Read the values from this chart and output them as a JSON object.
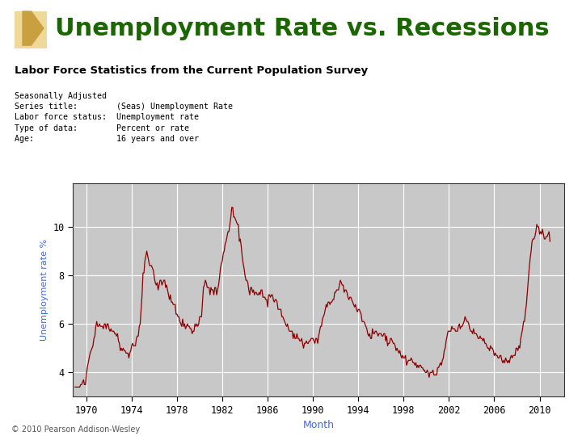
{
  "title": "Unemployment Rate vs. Recessions",
  "subtitle": "Labor Force Statistics from the Current Population Survey",
  "meta_lines": [
    "Seasonally Adjusted",
    "Series title:        (Seas) Unemployment Rate",
    "Labor force status:  Unemployment rate",
    "Type of data:        Percent or rate",
    "Age:                 16 years and over"
  ],
  "xlabel": "Month",
  "ylabel": "Unemployment rate %",
  "copyright": "© 2010 Pearson Addison-Wesley",
  "title_color": "#1A6600",
  "subtitle_color": "#000000",
  "line_color": "#8B0000",
  "bg_color": "#FFFFFF",
  "plot_bg": "#C8C8C8",
  "grid_color": "#FFFFFF",
  "ylabel_color": "#4169E1",
  "xlabel_color": "#4169E1",
  "yticks": [
    4,
    6,
    8,
    10
  ],
  "xticks": [
    1970,
    1974,
    1978,
    1982,
    1986,
    1990,
    1994,
    1998,
    2002,
    2006,
    2010
  ],
  "xlim": [
    1968.8,
    2012.2
  ],
  "ylim": [
    3.0,
    11.8
  ],
  "arrow_color": "#D4A84B",
  "unemployment_data": {
    "1969": [
      3.4,
      3.4,
      3.4,
      3.4,
      3.4,
      3.4,
      3.5,
      3.5,
      3.6,
      3.7,
      3.5,
      3.5
    ],
    "1970": [
      3.9,
      4.2,
      4.4,
      4.6,
      4.8,
      4.9,
      5.0,
      5.1,
      5.4,
      5.5,
      5.9,
      6.1
    ],
    "1971": [
      5.9,
      5.9,
      6.0,
      5.9,
      5.9,
      5.9,
      5.8,
      6.0,
      6.0,
      5.8,
      6.0,
      6.0
    ],
    "1972": [
      5.8,
      5.7,
      5.8,
      5.7,
      5.7,
      5.7,
      5.6,
      5.6,
      5.5,
      5.6,
      5.3,
      5.2
    ],
    "1973": [
      4.9,
      5.0,
      4.9,
      5.0,
      4.9,
      4.9,
      4.8,
      4.8,
      4.8,
      4.6,
      4.8,
      4.9
    ],
    "1974": [
      5.1,
      5.2,
      5.1,
      5.1,
      5.1,
      5.4,
      5.5,
      5.5,
      5.9,
      6.0,
      6.6,
      7.2
    ],
    "1975": [
      8.1,
      8.1,
      8.6,
      8.8,
      9.0,
      8.8,
      8.6,
      8.4,
      8.4,
      8.4,
      8.3,
      8.2
    ],
    "1976": [
      7.9,
      7.7,
      7.6,
      7.7,
      7.4,
      7.6,
      7.8,
      7.8,
      7.6,
      7.7,
      7.8,
      7.8
    ],
    "1977": [
      7.5,
      7.6,
      7.4,
      7.2,
      7.0,
      7.2,
      6.9,
      6.9,
      6.8,
      6.8,
      6.8,
      6.4
    ],
    "1978": [
      6.4,
      6.3,
      6.3,
      6.1,
      6.0,
      5.9,
      6.2,
      5.9,
      6.0,
      5.8,
      5.9,
      6.0
    ],
    "1979": [
      5.9,
      5.9,
      5.8,
      5.8,
      5.6,
      5.7,
      5.7,
      6.0,
      5.9,
      6.0,
      5.9,
      6.0
    ],
    "1980": [
      6.3,
      6.3,
      6.3,
      6.9,
      7.5,
      7.6,
      7.8,
      7.7,
      7.5,
      7.5,
      7.5,
      7.2
    ],
    "1981": [
      7.5,
      7.4,
      7.4,
      7.2,
      7.5,
      7.5,
      7.2,
      7.4,
      7.6,
      7.9,
      8.3,
      8.5
    ],
    "1982": [
      8.6,
      8.9,
      9.0,
      9.3,
      9.4,
      9.6,
      9.8,
      9.8,
      10.1,
      10.4,
      10.8,
      10.8
    ],
    "1983": [
      10.4,
      10.4,
      10.3,
      10.2,
      10.1,
      10.1,
      9.4,
      9.5,
      9.2,
      8.8,
      8.5,
      8.3
    ],
    "1984": [
      8.0,
      7.8,
      7.8,
      7.7,
      7.4,
      7.2,
      7.5,
      7.5,
      7.3,
      7.4,
      7.2,
      7.3
    ],
    "1985": [
      7.3,
      7.2,
      7.2,
      7.3,
      7.2,
      7.4,
      7.4,
      7.1,
      7.1,
      7.1,
      7.0,
      7.0
    ],
    "1986": [
      6.7,
      7.2,
      7.2,
      7.1,
      7.2,
      7.2,
      7.0,
      6.9,
      7.0,
      7.0,
      6.9,
      6.6
    ],
    "1987": [
      6.6,
      6.6,
      6.6,
      6.3,
      6.3,
      6.2,
      6.1,
      6.0,
      5.9,
      6.0,
      5.8,
      5.7
    ],
    "1988": [
      5.7,
      5.7,
      5.7,
      5.4,
      5.6,
      5.4,
      5.4,
      5.6,
      5.4,
      5.4,
      5.3,
      5.3
    ],
    "1989": [
      5.4,
      5.2,
      5.0,
      5.2,
      5.2,
      5.3,
      5.2,
      5.2,
      5.3,
      5.3,
      5.4,
      5.4
    ],
    "1990": [
      5.4,
      5.3,
      5.2,
      5.4,
      5.4,
      5.2,
      5.5,
      5.7,
      5.9,
      5.9,
      6.2,
      6.3
    ],
    "1991": [
      6.4,
      6.6,
      6.8,
      6.7,
      6.9,
      6.9,
      6.8,
      6.9,
      6.9,
      7.0,
      7.0,
      7.3
    ],
    "1992": [
      7.3,
      7.4,
      7.4,
      7.4,
      7.6,
      7.8,
      7.7,
      7.6,
      7.6,
      7.3,
      7.4,
      7.4
    ],
    "1993": [
      7.3,
      7.1,
      7.0,
      7.1,
      7.1,
      7.0,
      6.9,
      6.8,
      6.7,
      6.8,
      6.6,
      6.5
    ],
    "1994": [
      6.6,
      6.6,
      6.5,
      6.4,
      6.1,
      6.1,
      6.1,
      6.0,
      5.9,
      5.8,
      5.6,
      5.5
    ],
    "1995": [
      5.6,
      5.4,
      5.4,
      5.8,
      5.6,
      5.6,
      5.7,
      5.7,
      5.6,
      5.5,
      5.6,
      5.6
    ],
    "1996": [
      5.6,
      5.5,
      5.5,
      5.6,
      5.6,
      5.3,
      5.5,
      5.1,
      5.2,
      5.2,
      5.4,
      5.4
    ],
    "1997": [
      5.3,
      5.2,
      5.2,
      5.1,
      4.9,
      5.0,
      4.9,
      4.8,
      4.9,
      4.7,
      4.6,
      4.7
    ],
    "1998": [
      4.6,
      4.6,
      4.7,
      4.3,
      4.4,
      4.5,
      4.5,
      4.5,
      4.6,
      4.5,
      4.4,
      4.4
    ],
    "1999": [
      4.3,
      4.4,
      4.2,
      4.3,
      4.2,
      4.3,
      4.3,
      4.2,
      4.2,
      4.1,
      4.1,
      4.0
    ],
    "2000": [
      4.0,
      4.1,
      4.0,
      3.8,
      4.0,
      4.0,
      4.0,
      4.1,
      3.9,
      3.9,
      3.9,
      3.9
    ],
    "2001": [
      4.2,
      4.2,
      4.3,
      4.4,
      4.3,
      4.5,
      4.6,
      4.9,
      5.0,
      5.3,
      5.5,
      5.7
    ],
    "2002": [
      5.7,
      5.7,
      5.7,
      5.9,
      5.8,
      5.8,
      5.8,
      5.7,
      5.7,
      5.7,
      5.9,
      6.0
    ],
    "2003": [
      5.8,
      5.9,
      5.9,
      6.0,
      6.1,
      6.3,
      6.2,
      6.1,
      6.1,
      6.0,
      5.8,
      5.7
    ],
    "2004": [
      5.7,
      5.6,
      5.8,
      5.6,
      5.6,
      5.6,
      5.5,
      5.4,
      5.4,
      5.5,
      5.4,
      5.4
    ],
    "2005": [
      5.3,
      5.4,
      5.2,
      5.2,
      5.1,
      5.0,
      5.0,
      4.9,
      5.1,
      5.0,
      5.0,
      4.9
    ],
    "2006": [
      4.7,
      4.8,
      4.7,
      4.7,
      4.6,
      4.6,
      4.7,
      4.7,
      4.5,
      4.4,
      4.5,
      4.4
    ],
    "2007": [
      4.6,
      4.5,
      4.4,
      4.5,
      4.4,
      4.6,
      4.7,
      4.6,
      4.7,
      4.7,
      4.7,
      5.0
    ],
    "2008": [
      5.0,
      4.9,
      5.1,
      5.0,
      5.4,
      5.6,
      5.8,
      6.1,
      6.1,
      6.5,
      6.8,
      7.3
    ],
    "2009": [
      7.8,
      8.3,
      8.7,
      9.0,
      9.4,
      9.5,
      9.5,
      9.6,
      9.8,
      10.1,
      10.0,
      10.0
    ],
    "2010": [
      9.7,
      9.8,
      9.7,
      9.9,
      9.7,
      9.5,
      9.5,
      9.6,
      9.6,
      9.7,
      9.8,
      9.4
    ]
  }
}
